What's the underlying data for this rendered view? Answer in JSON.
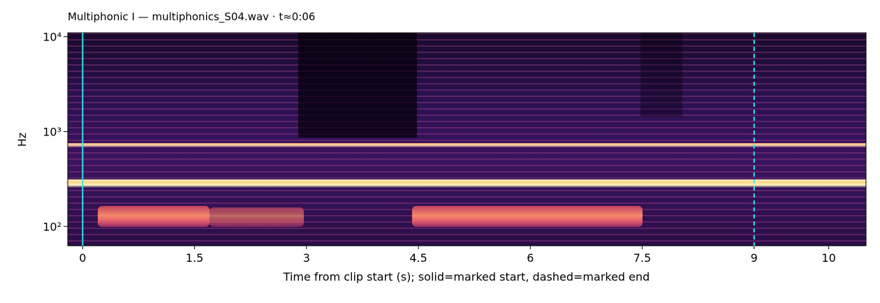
{
  "chart_data": {
    "type": "spectrogram",
    "title": "Multiphonic I  —  multiphonics_S04.wav · t≈0:06",
    "xlabel": "Time from clip start (s); solid=marked start, dashed=marked end",
    "ylabel": "Hz",
    "xlim": [
      -0.2,
      10.5
    ],
    "xticks": [
      0,
      1.5,
      3,
      4.5,
      6,
      7.5,
      9,
      10
    ],
    "ylim": [
      62.5,
      11000
    ],
    "yscale": "log",
    "yticks": [
      {
        "value": 100,
        "label": "10²"
      },
      {
        "value": 1000,
        "label": "10³"
      },
      {
        "value": 10000,
        "label": "10⁴"
      }
    ],
    "markers": [
      {
        "x": 0,
        "style": "solid"
      },
      {
        "x": 9,
        "style": "dashed"
      }
    ],
    "marker_color": "#2ee6f0"
  }
}
